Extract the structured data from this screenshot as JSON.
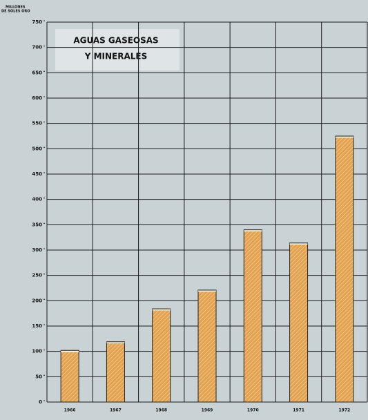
{
  "chart_data": {
    "type": "bar",
    "title": [
      "AGUAS GASEOSAS",
      "Y MINERALES"
    ],
    "y_label": [
      "MILLONES",
      "DE SOLES ORO"
    ],
    "categories": [
      "1966",
      "1967",
      "1968",
      "1969",
      "1970",
      "1971",
      "1972"
    ],
    "values": [
      102,
      119,
      184,
      221,
      340,
      314,
      525
    ],
    "color": "#e3a24f",
    "ylim": [
      0,
      750
    ],
    "yticks": [
      0,
      50,
      100,
      150,
      200,
      250,
      300,
      350,
      400,
      450,
      500,
      550,
      600,
      650,
      700,
      750
    ],
    "grid": true
  }
}
